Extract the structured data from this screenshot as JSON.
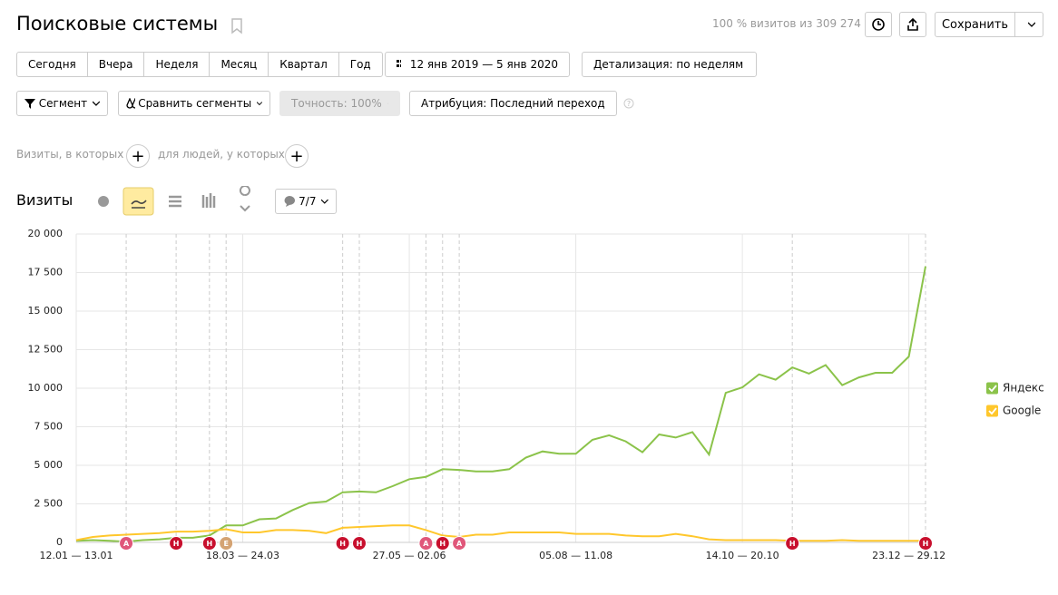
{
  "header": {
    "title": "Поисковые системы",
    "share": "100 % визитов из 309 274",
    "save": "Сохранить"
  },
  "periods": [
    "Сегодня",
    "Вчера",
    "Неделя",
    "Месяц",
    "Квартал",
    "Год"
  ],
  "date_range": "12 янв 2019 — 5 янв 2020",
  "detail": "Детализация: по неделям",
  "filters": [
    "Сегмент",
    "Сравнить сегменты",
    "Точность: 100%",
    "Атрибуция: Последний переход"
  ],
  "conditions": [
    "Визиты, в которых",
    "для людей, у которых"
  ],
  "notes_filter": "7/7",
  "chart_data": {
    "type": "line",
    "title": "Визиты",
    "categories": [
      "12.01 — 13.01",
      null,
      null,
      null,
      null,
      null,
      null,
      null,
      null,
      null,
      "18.03 — 24.03",
      null,
      null,
      null,
      null,
      null,
      null,
      null,
      null,
      null,
      "27.05 — 02.06",
      null,
      null,
      null,
      null,
      null,
      null,
      null,
      null,
      null,
      "05.08 — 11.08",
      null,
      null,
      null,
      null,
      null,
      null,
      null,
      null,
      null,
      "14.10 — 20.10",
      null,
      null,
      null,
      null,
      null,
      null,
      null,
      null,
      null,
      "23.12 — 29.12",
      null
    ],
    "series": [
      {
        "name": "Яндекс",
        "color": "#8bc34a",
        "values": [
          100,
          150,
          100,
          50,
          150,
          200,
          300,
          300,
          450,
          1100,
          1100,
          1500,
          1550,
          2100,
          2550,
          2650,
          3250,
          3300,
          3250,
          3650,
          4100,
          4250,
          4750,
          4700,
          4600,
          4600,
          4750,
          5500,
          5900,
          5750,
          5750,
          6650,
          6950,
          6550,
          5850,
          7000,
          6800,
          7150,
          5700,
          9700,
          10050,
          10900,
          10550,
          11350,
          10950,
          11500,
          10200,
          10700,
          11000,
          11000,
          12050,
          17900
        ]
      },
      {
        "name": "Google",
        "color": "#ffc72c",
        "values": [
          150,
          350,
          450,
          500,
          550,
          600,
          700,
          700,
          750,
          850,
          650,
          650,
          800,
          800,
          750,
          600,
          950,
          1000,
          1050,
          1100,
          1100,
          800,
          450,
          350,
          500,
          500,
          650,
          650,
          650,
          650,
          550,
          550,
          550,
          450,
          400,
          400,
          550,
          400,
          200,
          150,
          150,
          150,
          150,
          100,
          100,
          100,
          150,
          100,
          100,
          100,
          100,
          100
        ]
      }
    ],
    "ylim": [
      0,
      20000
    ],
    "yticks": [
      0,
      {
        "value": 2500,
        "label": "2 500"
      },
      {
        "value": 5000,
        "label": "5 000"
      },
      {
        "value": 7500,
        "label": "7 500"
      },
      {
        "value": 10000,
        "label": "10 000"
      },
      {
        "value": 12500,
        "label": "12 500"
      },
      {
        "value": 15000,
        "label": "15 000"
      },
      {
        "value": 17500,
        "label": "17 500"
      },
      {
        "value": 20000,
        "label": "20 000"
      }
    ],
    "grid": true,
    "legend": "right",
    "annotations": [
      {
        "week": 3,
        "label": "А",
        "color": "#e0577a"
      },
      {
        "week": 6,
        "label": "Н",
        "color": "#c8102e"
      },
      {
        "week": 8,
        "label": "Н",
        "color": "#c8102e"
      },
      {
        "week": 9,
        "label": "Е",
        "color": "#d4a373"
      },
      {
        "week": 16,
        "label": "Н",
        "color": "#c8102e"
      },
      {
        "week": 17,
        "label": "Н",
        "color": "#c8102e"
      },
      {
        "week": 21,
        "label": "А",
        "color": "#e0577a"
      },
      {
        "week": 22,
        "label": "Н",
        "color": "#c8102e"
      },
      {
        "week": 23,
        "label": "А",
        "color": "#e0577a"
      },
      {
        "week": 43,
        "label": "Н",
        "color": "#c8102e"
      },
      {
        "week": 51,
        "label": "Н",
        "color": "#c8102e"
      }
    ]
  }
}
